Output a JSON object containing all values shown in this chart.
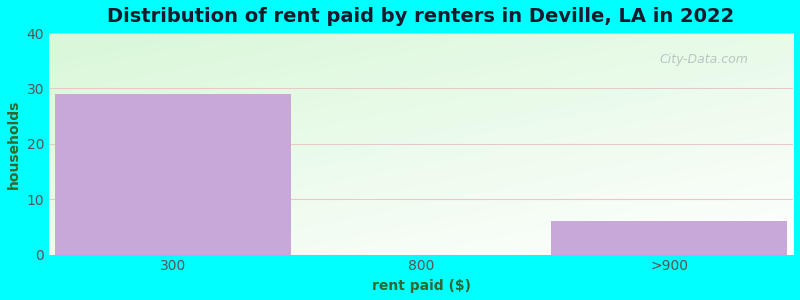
{
  "categories": [
    "300",
    "800",
    ">900"
  ],
  "values": [
    29,
    0,
    6
  ],
  "bar_color": "#c8a8d8",
  "title": "Distribution of rent paid by renters in Deville, LA in 2022",
  "xlabel": "rent paid ($)",
  "ylabel": "households",
  "ylim": [
    0,
    40
  ],
  "yticks": [
    0,
    10,
    20,
    30,
    40
  ],
  "background_color": "#00ffff",
  "title_fontsize": 14,
  "axis_label_fontsize": 10,
  "tick_fontsize": 10,
  "bar_width": 0.95,
  "grid_color": "#e8c8c8",
  "watermark": "City-Data.com"
}
